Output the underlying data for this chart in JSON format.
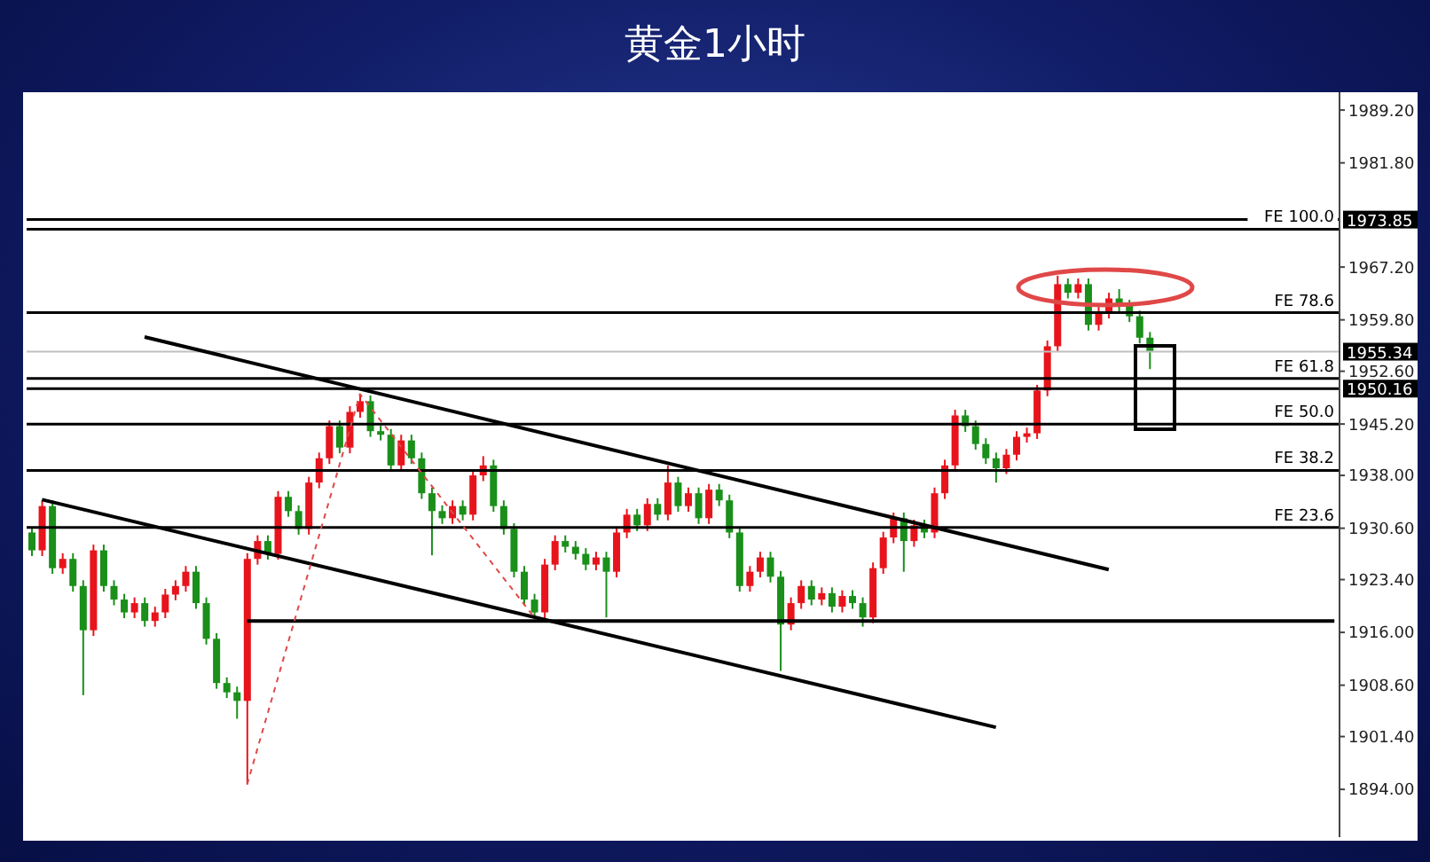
{
  "chart_data": {
    "type": "candlestick",
    "title": "黄金1小时",
    "categories": [
      null,
      null,
      null,
      null,
      null,
      null,
      null,
      null,
      null,
      null,
      null,
      null,
      null,
      null,
      null,
      null,
      null,
      null,
      null,
      null,
      null,
      null,
      null,
      null,
      null,
      null,
      null,
      null,
      null,
      null,
      null,
      null,
      null,
      null,
      null,
      null,
      null,
      null,
      null,
      null,
      null,
      null,
      null,
      null,
      null,
      null,
      null,
      null,
      null,
      null,
      null,
      null,
      null,
      null,
      null,
      null,
      null,
      null,
      null,
      null,
      null,
      null,
      null,
      null,
      null,
      null,
      null,
      null,
      null,
      null,
      null,
      null,
      null,
      null,
      null,
      null,
      null,
      null,
      null,
      null,
      null,
      null,
      null,
      null,
      null,
      null,
      null,
      null,
      null,
      null,
      null,
      null,
      null,
      null,
      null,
      null,
      null,
      null,
      null,
      null,
      null,
      null,
      null,
      null,
      null,
      null,
      null,
      null,
      null,
      null,
      null,
      null,
      null,
      null,
      null,
      null,
      null,
      null,
      null,
      null,
      null,
      null,
      null,
      null,
      null,
      null,
      null,
      null
    ],
    "ohlc": [
      [
        1930.0,
        1930.8,
        1926.7,
        1927.5
      ],
      [
        1927.5,
        1934.5,
        1926.7,
        1933.7
      ],
      [
        1933.7,
        1934.5,
        1924.2,
        1925.0
      ],
      [
        1925.0,
        1927.1,
        1924.2,
        1926.3
      ],
      [
        1926.3,
        1927.1,
        1921.7,
        1922.5
      ],
      [
        1922.5,
        1923.3,
        1907.2,
        1916.3
      ],
      [
        1916.3,
        1928.3,
        1915.5,
        1927.5
      ],
      [
        1927.5,
        1928.3,
        1921.7,
        1922.5
      ],
      [
        1922.5,
        1923.3,
        1919.8,
        1920.6
      ],
      [
        1920.6,
        1921.4,
        1918.0,
        1918.8
      ],
      [
        1918.8,
        1920.9,
        1918.0,
        1920.1
      ],
      [
        1920.1,
        1920.9,
        1916.8,
        1917.6
      ],
      [
        1917.6,
        1919.6,
        1916.8,
        1918.8
      ],
      [
        1918.8,
        1922.1,
        1918.0,
        1921.3
      ],
      [
        1921.3,
        1923.3,
        1920.5,
        1922.5
      ],
      [
        1922.5,
        1925.3,
        1921.7,
        1924.5
      ],
      [
        1924.5,
        1925.3,
        1919.3,
        1920.1
      ],
      [
        1920.1,
        1920.9,
        1914.3,
        1915.1
      ],
      [
        1915.1,
        1915.9,
        1908.1,
        1908.9
      ],
      [
        1908.9,
        1909.7,
        1906.8,
        1907.6
      ],
      [
        1907.6,
        1908.4,
        1903.9,
        1906.4
      ],
      [
        1906.4,
        1927.1,
        1894.7,
        1926.3
      ],
      [
        1926.3,
        1929.6,
        1925.5,
        1928.8
      ],
      [
        1928.8,
        1929.6,
        1926.2,
        1927.0
      ],
      [
        1927.0,
        1935.8,
        1926.2,
        1935.0
      ],
      [
        1935.0,
        1935.8,
        1932.2,
        1933.0
      ],
      [
        1933.0,
        1933.8,
        1929.7,
        1930.5
      ],
      [
        1930.5,
        1937.8,
        1929.7,
        1937.0
      ],
      [
        1937.0,
        1941.2,
        1936.2,
        1940.4
      ],
      [
        1940.4,
        1945.7,
        1939.6,
        1944.9
      ],
      [
        1944.9,
        1945.7,
        1941.1,
        1941.9
      ],
      [
        1941.9,
        1947.7,
        1941.1,
        1946.9
      ],
      [
        1946.9,
        1949.4,
        1946.1,
        1948.4
      ],
      [
        1948.4,
        1949.2,
        1943.4,
        1944.2
      ],
      [
        1944.2,
        1945.0,
        1942.9,
        1943.7
      ],
      [
        1943.7,
        1944.5,
        1938.6,
        1939.4
      ],
      [
        1939.4,
        1943.7,
        1938.6,
        1942.9
      ],
      [
        1942.9,
        1943.7,
        1939.6,
        1940.4
      ],
      [
        1940.4,
        1941.2,
        1934.7,
        1935.5
      ],
      [
        1935.5,
        1936.3,
        1926.8,
        1933.0
      ],
      [
        1933.0,
        1933.8,
        1931.2,
        1932.0
      ],
      [
        1932.0,
        1934.5,
        1931.2,
        1933.7
      ],
      [
        1933.7,
        1934.5,
        1931.7,
        1932.5
      ],
      [
        1932.5,
        1938.8,
        1931.7,
        1938.0
      ],
      [
        1938.0,
        1940.7,
        1937.2,
        1939.4
      ],
      [
        1939.4,
        1940.2,
        1932.9,
        1933.7
      ],
      [
        1933.7,
        1934.5,
        1929.7,
        1930.5
      ],
      [
        1930.5,
        1931.3,
        1923.7,
        1924.5
      ],
      [
        1924.5,
        1925.3,
        1919.8,
        1920.6
      ],
      [
        1920.6,
        1921.4,
        1918.1,
        1918.8
      ],
      [
        1918.8,
        1926.3,
        1918.0,
        1925.5
      ],
      [
        1925.5,
        1929.6,
        1924.7,
        1928.8
      ],
      [
        1928.8,
        1929.6,
        1927.2,
        1928.0
      ],
      [
        1928.0,
        1928.8,
        1926.2,
        1927.0
      ],
      [
        1927.0,
        1927.8,
        1924.7,
        1925.5
      ],
      [
        1925.5,
        1927.3,
        1924.7,
        1926.5
      ],
      [
        1926.5,
        1927.3,
        1918.1,
        1924.5
      ],
      [
        1924.5,
        1930.8,
        1923.7,
        1930.0
      ],
      [
        1930.0,
        1933.3,
        1929.2,
        1932.5
      ],
      [
        1932.5,
        1933.3,
        1930.2,
        1931.0
      ],
      [
        1931.0,
        1934.8,
        1930.2,
        1934.0
      ],
      [
        1934.0,
        1934.8,
        1931.7,
        1932.5
      ],
      [
        1932.5,
        1939.4,
        1931.7,
        1937.0
      ],
      [
        1937.0,
        1937.8,
        1932.9,
        1933.7
      ],
      [
        1933.7,
        1936.3,
        1932.9,
        1935.5
      ],
      [
        1935.5,
        1936.3,
        1931.2,
        1932.0
      ],
      [
        1932.0,
        1936.8,
        1931.2,
        1936.0
      ],
      [
        1936.0,
        1936.8,
        1933.7,
        1934.5
      ],
      [
        1934.5,
        1935.3,
        1929.2,
        1930.0
      ],
      [
        1930.0,
        1930.8,
        1921.7,
        1922.5
      ],
      [
        1922.5,
        1925.3,
        1921.7,
        1924.5
      ],
      [
        1924.5,
        1927.3,
        1923.7,
        1926.5
      ],
      [
        1926.5,
        1927.3,
        1923.0,
        1923.8
      ],
      [
        1923.8,
        1924.6,
        1910.6,
        1917.1
      ],
      [
        1917.1,
        1920.9,
        1916.3,
        1920.1
      ],
      [
        1920.1,
        1923.3,
        1919.3,
        1922.5
      ],
      [
        1922.5,
        1923.3,
        1919.8,
        1920.6
      ],
      [
        1920.6,
        1922.3,
        1919.8,
        1921.5
      ],
      [
        1921.5,
        1922.3,
        1918.8,
        1919.6
      ],
      [
        1919.6,
        1921.9,
        1918.8,
        1921.1
      ],
      [
        1921.1,
        1921.9,
        1919.3,
        1920.1
      ],
      [
        1920.1,
        1920.9,
        1916.8,
        1918.1
      ],
      [
        1918.1,
        1925.8,
        1917.3,
        1925.0
      ],
      [
        1925.0,
        1930.1,
        1924.2,
        1929.3
      ],
      [
        1929.3,
        1932.8,
        1928.5,
        1932.0
      ],
      [
        1932.0,
        1932.8,
        1924.5,
        1928.8
      ],
      [
        1928.8,
        1931.8,
        1928.0,
        1931.0
      ],
      [
        1931.0,
        1931.8,
        1929.2,
        1930.0
      ],
      [
        1930.0,
        1936.3,
        1929.2,
        1935.5
      ],
      [
        1935.5,
        1940.2,
        1934.7,
        1939.4
      ],
      [
        1939.4,
        1947.2,
        1938.6,
        1946.4
      ],
      [
        1946.4,
        1947.2,
        1944.1,
        1944.9
      ],
      [
        1944.9,
        1945.7,
        1941.6,
        1942.4
      ],
      [
        1942.4,
        1943.2,
        1939.6,
        1940.4
      ],
      [
        1940.4,
        1941.2,
        1937.0,
        1939.0
      ],
      [
        1939.0,
        1941.7,
        1938.2,
        1940.9
      ],
      [
        1940.9,
        1944.2,
        1940.1,
        1943.4
      ],
      [
        1943.4,
        1944.7,
        1942.6,
        1943.9
      ],
      [
        1943.9,
        1950.7,
        1943.1,
        1949.9
      ],
      [
        1949.9,
        1956.9,
        1949.1,
        1956.1
      ],
      [
        1956.1,
        1966.0,
        1955.3,
        1964.8
      ],
      [
        1964.8,
        1965.6,
        1962.8,
        1963.6
      ],
      [
        1963.6,
        1965.6,
        1962.8,
        1964.8
      ],
      [
        1964.8,
        1965.6,
        1958.3,
        1959.1
      ],
      [
        1959.1,
        1961.6,
        1958.3,
        1960.8
      ],
      [
        1960.8,
        1963.6,
        1960.0,
        1962.8
      ],
      [
        1962.8,
        1964.1,
        1961.0,
        1961.8
      ],
      [
        1961.8,
        1962.6,
        1959.5,
        1960.3
      ],
      [
        1960.3,
        1961.1,
        1956.5,
        1957.3
      ],
      [
        1957.3,
        1958.1,
        1952.9,
        1955.34
      ],
      null,
      null,
      null,
      null,
      null,
      null,
      null,
      null,
      null,
      null,
      null,
      null,
      null,
      null,
      null,
      null,
      null,
      null
    ],
    "colors": [
      "#1a8f1a",
      "#e8141c",
      "#1a8f1a",
      "#e8141c",
      "#1a8f1a",
      "#1a8f1a",
      "#e8141c",
      "#1a8f1a",
      "#1a8f1a",
      "#1a8f1a",
      "#e8141c",
      "#1a8f1a",
      "#e8141c",
      "#e8141c",
      "#e8141c",
      "#e8141c",
      "#1a8f1a",
      "#1a8f1a",
      "#1a8f1a",
      "#1a8f1a",
      "#1a8f1a",
      "#e8141c",
      "#e8141c",
      "#1a8f1a",
      "#e8141c",
      "#1a8f1a",
      "#1a8f1a",
      "#e8141c",
      "#e8141c",
      "#e8141c",
      "#1a8f1a",
      "#e8141c",
      "#e8141c",
      "#1a8f1a",
      "#1a8f1a",
      "#1a8f1a",
      "#e8141c",
      "#1a8f1a",
      "#1a8f1a",
      "#1a8f1a",
      "#1a8f1a",
      "#e8141c",
      "#1a8f1a",
      "#e8141c",
      "#e8141c",
      "#1a8f1a",
      "#1a8f1a",
      "#1a8f1a",
      "#1a8f1a",
      "#1a8f1a",
      "#e8141c",
      "#e8141c",
      "#1a8f1a",
      "#1a8f1a",
      "#1a8f1a",
      "#e8141c",
      "#1a8f1a",
      "#e8141c",
      "#e8141c",
      "#1a8f1a",
      "#e8141c",
      "#1a8f1a",
      "#e8141c",
      "#1a8f1a",
      "#e8141c",
      "#1a8f1a",
      "#e8141c",
      "#1a8f1a",
      "#1a8f1a",
      "#1a8f1a",
      "#e8141c",
      "#e8141c",
      "#1a8f1a",
      "#1a8f1a",
      "#e8141c",
      "#e8141c",
      "#1a8f1a",
      "#e8141c",
      "#1a8f1a",
      "#e8141c",
      "#1a8f1a",
      "#1a8f1a",
      "#e8141c",
      "#e8141c",
      "#e8141c",
      "#1a8f1a",
      "#e8141c",
      "#1a8f1a",
      "#e8141c",
      "#e8141c",
      "#e8141c",
      "#1a8f1a",
      "#1a8f1a",
      "#1a8f1a",
      "#1a8f1a",
      "#e8141c",
      "#e8141c",
      "#e8141c",
      "#e8141c",
      "#e8141c",
      "#e8141c",
      "#1a8f1a",
      "#e8141c",
      "#1a8f1a",
      "#e8141c",
      "#e8141c",
      "#1a8f1a",
      "#1a8f1a",
      "#1a8f1a",
      "#1a8f1a",
      null,
      null,
      null,
      null,
      null,
      null,
      null,
      null,
      null,
      null,
      null,
      null,
      null,
      null,
      null,
      null,
      null,
      null
    ],
    "series": [
      {
        "type": "line",
        "color": "#000000",
        "values": [
          null,
          null,
          null,
          null,
          null,
          null,
          null,
          null,
          null,
          null,
          null,
          1957.4,
          null,
          null,
          null,
          null,
          null,
          null,
          null,
          null,
          null,
          null,
          null,
          null,
          null,
          null,
          null,
          null,
          null,
          null,
          null,
          null,
          null,
          null,
          null,
          null,
          null,
          null,
          null,
          null,
          null,
          null,
          null,
          null,
          null,
          null,
          null,
          null,
          null,
          null,
          null,
          null,
          null,
          null,
          null,
          null,
          null,
          null,
          null,
          null,
          null,
          null,
          null,
          null,
          null,
          null,
          null,
          null,
          null,
          null,
          null,
          null,
          null,
          null,
          null,
          null,
          null,
          null,
          null,
          null,
          null,
          null,
          null,
          null,
          null,
          null,
          null,
          null,
          null,
          null,
          null,
          null,
          null,
          null,
          null,
          null,
          null,
          null,
          null,
          null,
          null,
          null,
          null,
          null,
          null,
          1924.8,
          null,
          null,
          null,
          null,
          null,
          null,
          null,
          null,
          null,
          null,
          null,
          null,
          null,
          null,
          null,
          null,
          null,
          null,
          null,
          null,
          null,
          null
        ]
      },
      {
        "type": "line",
        "color": "#000000",
        "values": [
          null,
          1934.6,
          null,
          null,
          null,
          null,
          null,
          null,
          null,
          null,
          null,
          null,
          null,
          null,
          null,
          null,
          null,
          null,
          null,
          null,
          null,
          null,
          null,
          null,
          null,
          null,
          null,
          null,
          null,
          null,
          null,
          null,
          null,
          null,
          null,
          null,
          null,
          null,
          null,
          null,
          null,
          null,
          null,
          null,
          null,
          null,
          null,
          null,
          null,
          null,
          null,
          null,
          null,
          null,
          null,
          null,
          null,
          null,
          null,
          null,
          null,
          null,
          null,
          null,
          null,
          null,
          null,
          null,
          null,
          null,
          null,
          null,
          null,
          null,
          null,
          null,
          null,
          null,
          null,
          null,
          null,
          null,
          null,
          null,
          null,
          null,
          null,
          null,
          null,
          null,
          null,
          null,
          null,
          null,
          1902.7,
          null,
          null,
          null,
          null,
          null,
          null,
          null,
          null,
          null,
          null,
          null,
          null,
          null,
          null,
          null,
          null,
          null,
          null,
          null,
          null,
          null,
          null,
          null,
          null,
          null,
          null,
          null,
          null,
          null,
          null,
          null,
          null,
          null
        ]
      },
      {
        "type": "line",
        "color": "#000000",
        "values": [
          null,
          null,
          null,
          null,
          null,
          null,
          null,
          null,
          null,
          null,
          null,
          null,
          null,
          null,
          null,
          null,
          null,
          null,
          null,
          null,
          null,
          1917.6,
          null,
          null,
          null,
          null,
          null,
          null,
          null,
          null,
          null,
          null,
          null,
          null,
          null,
          null,
          null,
          null,
          null,
          null,
          null,
          null,
          null,
          null,
          null,
          null,
          null,
          null,
          null,
          null,
          null,
          null,
          null,
          null,
          null,
          null,
          null,
          null,
          null,
          null,
          null,
          null,
          null,
          null,
          null,
          null,
          null,
          null,
          null,
          null,
          null,
          null,
          null,
          null,
          null,
          null,
          null,
          null,
          null,
          null,
          null,
          null,
          null,
          null,
          null,
          null,
          null,
          null,
          null,
          null,
          null,
          null,
          null,
          null,
          null,
          null,
          null,
          null,
          null,
          null,
          null,
          null,
          null,
          null,
          null,
          null,
          null,
          null,
          null,
          null,
          null,
          null,
          null,
          null,
          null,
          null,
          null,
          null,
          null,
          null,
          null,
          null,
          null,
          null,
          null,
          null,
          null,
          1917.6
        ]
      },
      {
        "type": "line",
        "color": "#e04848",
        "line_style": "dashed",
        "values": [
          null,
          null,
          null,
          null,
          null,
          null,
          null,
          null,
          null,
          null,
          null,
          null,
          null,
          null,
          null,
          null,
          null,
          null,
          null,
          null,
          null,
          1894.7,
          null,
          null,
          null,
          null,
          null,
          null,
          null,
          null,
          null,
          null,
          1949.4,
          null,
          null,
          null,
          null,
          null,
          null,
          null,
          null,
          null,
          null,
          null,
          null,
          null,
          null,
          null,
          null,
          1918.1,
          null,
          null,
          null,
          null,
          null,
          null,
          null,
          null,
          null,
          null,
          null,
          null,
          null,
          null,
          null,
          null,
          null,
          null,
          null,
          null,
          null,
          null,
          null,
          null,
          null,
          null,
          null,
          null,
          null,
          null,
          null,
          null,
          null,
          null,
          null,
          null,
          null,
          null,
          null,
          null,
          null,
          null,
          null,
          null,
          null,
          null,
          null,
          null,
          null,
          null,
          null,
          null,
          null,
          null,
          null,
          null,
          null,
          null,
          null,
          null,
          null,
          null,
          null,
          null,
          null,
          null,
          null,
          null,
          null,
          null,
          null,
          null,
          null,
          null,
          null,
          null,
          null,
          null
        ]
      }
    ],
    "ylim": [
      1887.3,
      1991.7
    ],
    "yticks": [
      {
        "value": 1894,
        "label": "1894.00"
      },
      {
        "value": 1901.4,
        "label": "1901.40"
      },
      {
        "value": 1908.6,
        "label": "1908.60"
      },
      {
        "value": 1916,
        "label": "1916.00"
      },
      {
        "value": 1923.4,
        "label": "1923.40"
      },
      {
        "value": 1930.6,
        "label": "1930.60"
      },
      {
        "value": 1938,
        "label": "1938.00"
      },
      {
        "value": 1945.2,
        "label": "1945.20"
      },
      {
        "value": 1952.6,
        "label": "1952.60"
      },
      {
        "value": 1959.8,
        "label": "1959.80"
      },
      {
        "value": 1967.2,
        "label": "1967.20"
      },
      {
        "value": 1981.8,
        "label": "1981.80"
      },
      {
        "value": 1989.2,
        "label": "1989.20"
      }
    ],
    "ref_lines": [
      {
        "axis": "y",
        "value": 1973.85,
        "label": "1973.85",
        "color": "#000000"
      },
      {
        "axis": "y",
        "value": 1972.5,
        "label": "FE 100.0",
        "color": "#000000"
      },
      {
        "axis": "y",
        "value": 1960.8,
        "label": "FE 78.6",
        "color": "#000000"
      },
      {
        "axis": "y",
        "value": 1955.34,
        "label": "1955.34",
        "color": "#c0c0c0"
      },
      {
        "axis": "y",
        "value": 1951.6,
        "label": "FE 61.8",
        "color": "#000000"
      },
      {
        "axis": "y",
        "value": 1950.16,
        "label": "1950.16",
        "color": "#000000"
      },
      {
        "axis": "y",
        "value": 1945.2,
        "label": "FE 50.0",
        "color": "#000000"
      },
      {
        "axis": "y",
        "value": 1938.7,
        "label": "FE 38.2",
        "color": "#000000"
      },
      {
        "axis": "y",
        "value": 1930.7,
        "label": "FE 23.6",
        "color": "#000000"
      }
    ],
    "tick_labels": "y",
    "grid": false,
    "legend": false
  }
}
